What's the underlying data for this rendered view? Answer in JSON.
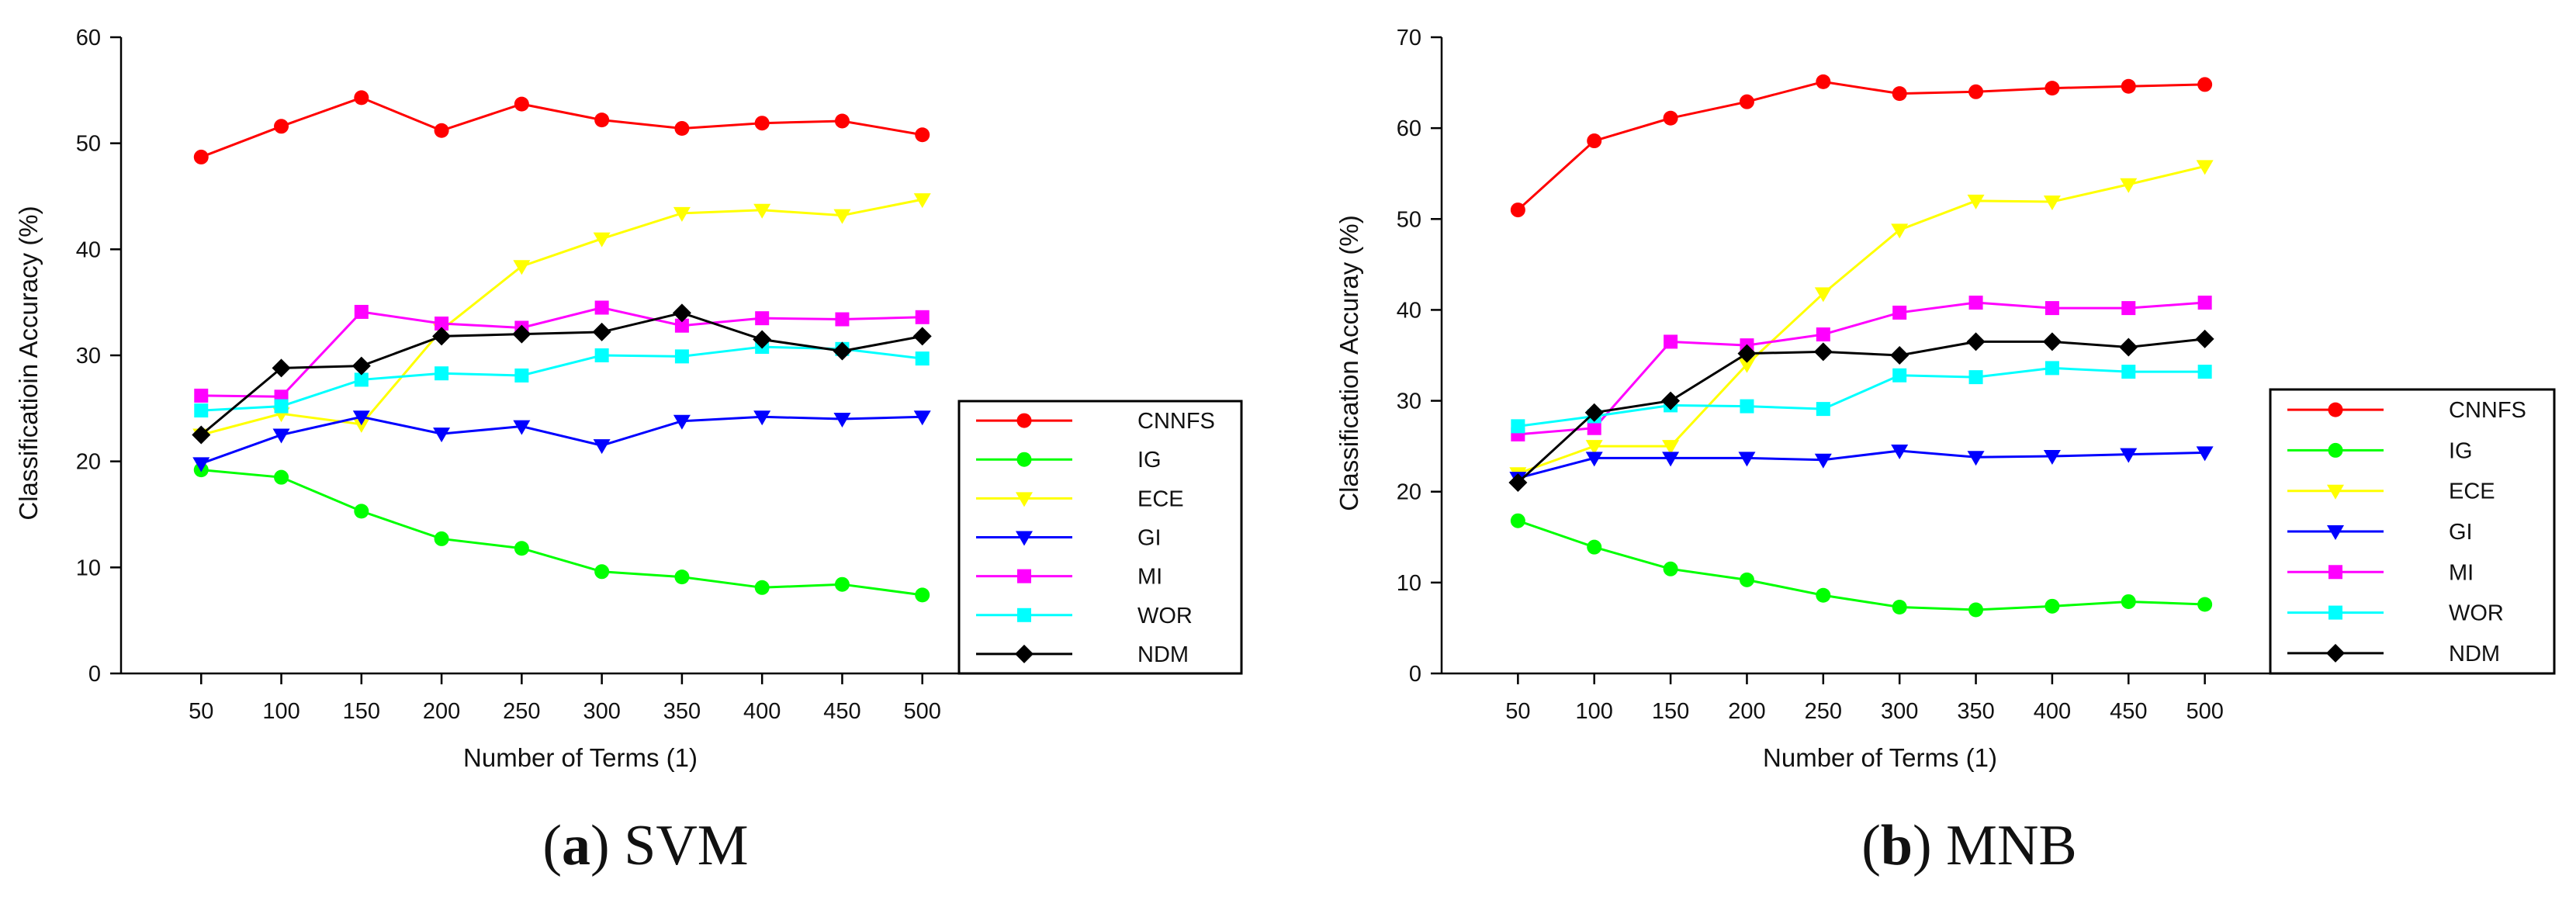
{
  "chart_data": [
    {
      "type": "line",
      "panel": "a",
      "caption_letter": "a",
      "caption_text": "SVM",
      "xlabel": "Number of Terms (1)",
      "ylabel": "Classificatioin Accuracy (%)",
      "x": [
        50,
        100,
        150,
        200,
        250,
        300,
        350,
        400,
        450,
        500
      ],
      "xlim": [
        0,
        550
      ],
      "ylim": [
        0,
        60
      ],
      "yticks": [
        0,
        10,
        20,
        30,
        40,
        50,
        60
      ],
      "legend_position": "bottom-right",
      "grid": false,
      "series": [
        {
          "name": "CNNFS",
          "color": "#ff0000",
          "marker": "circle",
          "values": [
            48.7,
            51.6,
            54.3,
            51.2,
            53.7,
            52.2,
            51.4,
            51.9,
            52.1,
            50.8
          ]
        },
        {
          "name": "IG",
          "color": "#00ff00",
          "marker": "circle",
          "values": [
            19.2,
            18.5,
            15.3,
            12.7,
            11.8,
            9.6,
            9.1,
            8.1,
            8.4,
            7.4
          ]
        },
        {
          "name": "ECE",
          "color": "#ffff00",
          "marker": "triangle",
          "values": [
            22.5,
            24.5,
            23.5,
            32.4,
            38.4,
            41.0,
            43.4,
            43.7,
            43.2,
            44.7
          ]
        },
        {
          "name": "GI",
          "color": "#0000ff",
          "marker": "triangle",
          "values": [
            19.8,
            22.5,
            24.2,
            22.6,
            23.3,
            21.5,
            23.8,
            24.2,
            24.0,
            24.2
          ]
        },
        {
          "name": "MI",
          "color": "#ff00ff",
          "marker": "square",
          "values": [
            26.2,
            26.1,
            34.1,
            33.0,
            32.6,
            34.5,
            32.8,
            33.5,
            33.4,
            33.6
          ]
        },
        {
          "name": "WOR",
          "color": "#00ffff",
          "marker": "square",
          "values": [
            24.8,
            25.2,
            27.7,
            28.3,
            28.1,
            30.0,
            29.9,
            30.8,
            30.6,
            29.7
          ]
        },
        {
          "name": "NDM",
          "color": "#000000",
          "marker": "diamond",
          "values": [
            22.5,
            28.8,
            29.0,
            31.8,
            32.0,
            32.2,
            34.0,
            31.5,
            30.4,
            31.8
          ]
        }
      ]
    },
    {
      "type": "line",
      "panel": "b",
      "caption_letter": "b",
      "caption_text": "MNB",
      "xlabel": "Number of Terms (1)",
      "ylabel": "Classification Accuray (%)",
      "x": [
        50,
        100,
        150,
        200,
        250,
        300,
        350,
        400,
        450,
        500
      ],
      "xlim": [
        0,
        550
      ],
      "ylim": [
        0,
        70
      ],
      "yticks": [
        0,
        10,
        20,
        30,
        40,
        50,
        60,
        70
      ],
      "legend_position": "bottom-right",
      "grid": false,
      "series": [
        {
          "name": "CNNFS",
          "color": "#ff0000",
          "marker": "circle",
          "values": [
            51.0,
            58.6,
            61.1,
            62.9,
            65.1,
            63.8,
            64.0,
            64.4,
            64.6,
            64.8
          ]
        },
        {
          "name": "IG",
          "color": "#00ff00",
          "marker": "circle",
          "values": [
            16.8,
            13.9,
            11.5,
            10.3,
            8.6,
            7.3,
            7.0,
            7.4,
            7.9,
            7.6
          ]
        },
        {
          "name": "ECE",
          "color": "#ffff00",
          "marker": "triangle",
          "values": [
            22.0,
            25.0,
            25.0,
            34.0,
            41.8,
            48.8,
            52.0,
            51.9,
            53.8,
            55.8
          ]
        },
        {
          "name": "GI",
          "color": "#0000ff",
          "marker": "triangle",
          "values": [
            21.5,
            23.7,
            23.7,
            23.7,
            23.5,
            24.5,
            23.8,
            23.9,
            24.1,
            24.3
          ]
        },
        {
          "name": "MI",
          "color": "#ff00ff",
          "marker": "square",
          "values": [
            26.3,
            27.0,
            36.5,
            36.1,
            37.3,
            39.7,
            40.8,
            40.2,
            40.2,
            40.8
          ]
        },
        {
          "name": "WOR",
          "color": "#00ffff",
          "marker": "square",
          "values": [
            27.2,
            28.3,
            29.5,
            29.4,
            29.1,
            32.8,
            32.6,
            33.6,
            33.2,
            33.2
          ]
        },
        {
          "name": "NDM",
          "color": "#000000",
          "marker": "diamond",
          "values": [
            21.0,
            28.7,
            30.0,
            35.2,
            35.4,
            35.0,
            36.5,
            36.5,
            35.9,
            36.8
          ]
        }
      ]
    }
  ]
}
